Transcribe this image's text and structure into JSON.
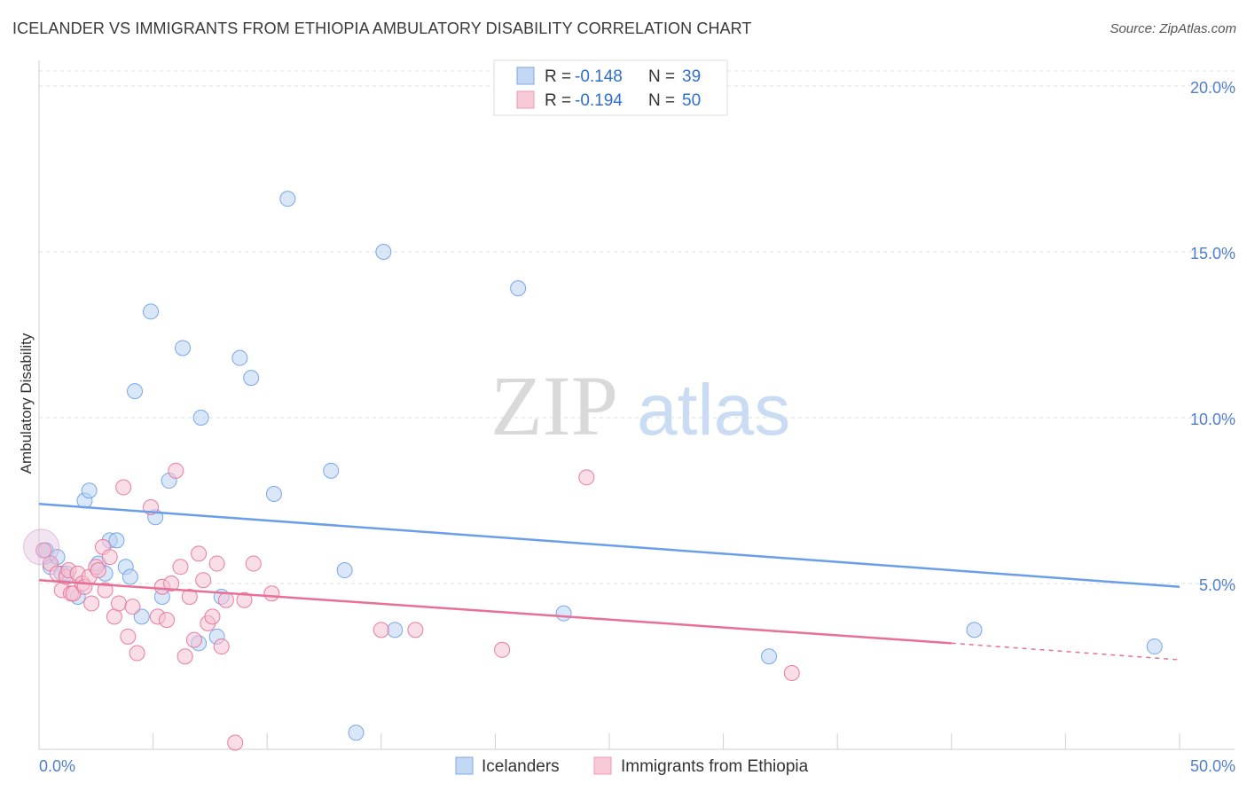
{
  "header": {
    "title": "ICELANDER VS IMMIGRANTS FROM ETHIOPIA AMBULATORY DISABILITY CORRELATION CHART",
    "source": "Source: ZipAtlas.com"
  },
  "watermark": {
    "zip": "ZIP",
    "atlas": "atlas"
  },
  "legend_top": {
    "rows": [
      {
        "r_label": "R = ",
        "r_value": "-0.148",
        "n_label": "N = ",
        "n_value": "39",
        "color": "#a9c8f0"
      },
      {
        "r_label": "R = ",
        "r_value": "-0.194",
        "n_label": "N = ",
        "n_value": "50",
        "color": "#f5b8cb"
      }
    ]
  },
  "legend_bottom": [
    {
      "label": "Icelanders",
      "color": "#a9c8f0"
    },
    {
      "label": "Immigrants from Ethiopia",
      "color": "#f5b8cb"
    }
  ],
  "chart_data": {
    "type": "scatter",
    "title": "ICELANDER VS IMMIGRANTS FROM ETHIOPIA AMBULATORY DISABILITY CORRELATION CHART",
    "xlabel": "",
    "ylabel": "Ambulatory Disability",
    "xlim": [
      0,
      50
    ],
    "ylim": [
      0,
      20
    ],
    "x_tick_labels": [
      "0.0%",
      "50.0%"
    ],
    "y_ticks": [
      5,
      10,
      15,
      20
    ],
    "y_tick_labels": [
      "5.0%",
      "10.0%",
      "15.0%",
      "20.0%"
    ],
    "grid": true,
    "legend_placement": "top-center",
    "series": [
      {
        "name": "Icelanders",
        "color": "#6a9ee8",
        "fill": "#b9d3f4",
        "r": -0.148,
        "n": 39,
        "trend": {
          "x0": 0,
          "y0": 7.4,
          "x1": 50,
          "y1": 4.9
        },
        "points": [
          [
            0.3,
            6.0
          ],
          [
            0.5,
            5.5
          ],
          [
            0.8,
            5.8
          ],
          [
            1.0,
            5.3
          ],
          [
            1.2,
            5.3
          ],
          [
            1.7,
            4.6
          ],
          [
            2.0,
            7.5
          ],
          [
            2.2,
            7.8
          ],
          [
            2.6,
            5.6
          ],
          [
            2.9,
            5.3
          ],
          [
            3.1,
            6.3
          ],
          [
            3.4,
            6.3
          ],
          [
            3.8,
            5.5
          ],
          [
            4.0,
            5.2
          ],
          [
            4.2,
            10.8
          ],
          [
            4.5,
            4.0
          ],
          [
            4.9,
            13.2
          ],
          [
            5.1,
            7.0
          ],
          [
            5.4,
            4.6
          ],
          [
            5.7,
            8.1
          ],
          [
            6.3,
            12.1
          ],
          [
            7.0,
            3.2
          ],
          [
            7.1,
            10.0
          ],
          [
            7.8,
            3.4
          ],
          [
            8.0,
            4.6
          ],
          [
            8.8,
            11.8
          ],
          [
            9.3,
            11.2
          ],
          [
            10.3,
            7.7
          ],
          [
            10.9,
            16.6
          ],
          [
            12.8,
            8.4
          ],
          [
            13.4,
            5.4
          ],
          [
            13.9,
            0.5
          ],
          [
            15.1,
            15.0
          ],
          [
            15.6,
            3.6
          ],
          [
            21.0,
            13.9
          ],
          [
            23.0,
            4.1
          ],
          [
            32.0,
            2.8
          ],
          [
            41.0,
            3.6
          ],
          [
            48.9,
            3.1
          ]
        ]
      },
      {
        "name": "Immigrants from Ethiopia",
        "color": "#e86f96",
        "fill": "#f6c3d3",
        "r": -0.194,
        "n": 50,
        "trend": {
          "x0": 0,
          "y0": 5.1,
          "x1": 40,
          "y1": 3.2
        },
        "trend_dashed_to": {
          "x": 50,
          "y": 2.7
        },
        "points": [
          [
            0.2,
            6.0
          ],
          [
            0.5,
            5.6
          ],
          [
            0.8,
            5.3
          ],
          [
            1.0,
            4.8
          ],
          [
            1.2,
            5.2
          ],
          [
            1.3,
            5.4
          ],
          [
            1.4,
            4.7
          ],
          [
            1.5,
            4.7
          ],
          [
            1.7,
            5.3
          ],
          [
            1.9,
            5.0
          ],
          [
            2.0,
            4.9
          ],
          [
            2.2,
            5.2
          ],
          [
            2.3,
            4.4
          ],
          [
            2.5,
            5.5
          ],
          [
            2.6,
            5.4
          ],
          [
            2.8,
            6.1
          ],
          [
            2.9,
            4.8
          ],
          [
            3.1,
            5.8
          ],
          [
            3.3,
            4.0
          ],
          [
            3.5,
            4.4
          ],
          [
            3.7,
            7.9
          ],
          [
            3.9,
            3.4
          ],
          [
            4.1,
            4.3
          ],
          [
            4.3,
            2.9
          ],
          [
            4.9,
            7.3
          ],
          [
            5.2,
            4.0
          ],
          [
            5.4,
            4.9
          ],
          [
            5.6,
            3.9
          ],
          [
            5.8,
            5.0
          ],
          [
            6.0,
            8.4
          ],
          [
            6.2,
            5.5
          ],
          [
            6.4,
            2.8
          ],
          [
            6.6,
            4.6
          ],
          [
            6.8,
            3.3
          ],
          [
            7.0,
            5.9
          ],
          [
            7.2,
            5.1
          ],
          [
            7.4,
            3.8
          ],
          [
            7.6,
            4.0
          ],
          [
            7.8,
            5.6
          ],
          [
            8.0,
            3.1
          ],
          [
            8.2,
            4.5
          ],
          [
            8.6,
            0.2
          ],
          [
            9.0,
            4.5
          ],
          [
            9.4,
            5.6
          ],
          [
            10.2,
            4.7
          ],
          [
            15.0,
            3.6
          ],
          [
            16.5,
            3.6
          ],
          [
            20.3,
            3.0
          ],
          [
            24.0,
            8.2
          ],
          [
            33.0,
            2.3
          ]
        ]
      }
    ]
  }
}
